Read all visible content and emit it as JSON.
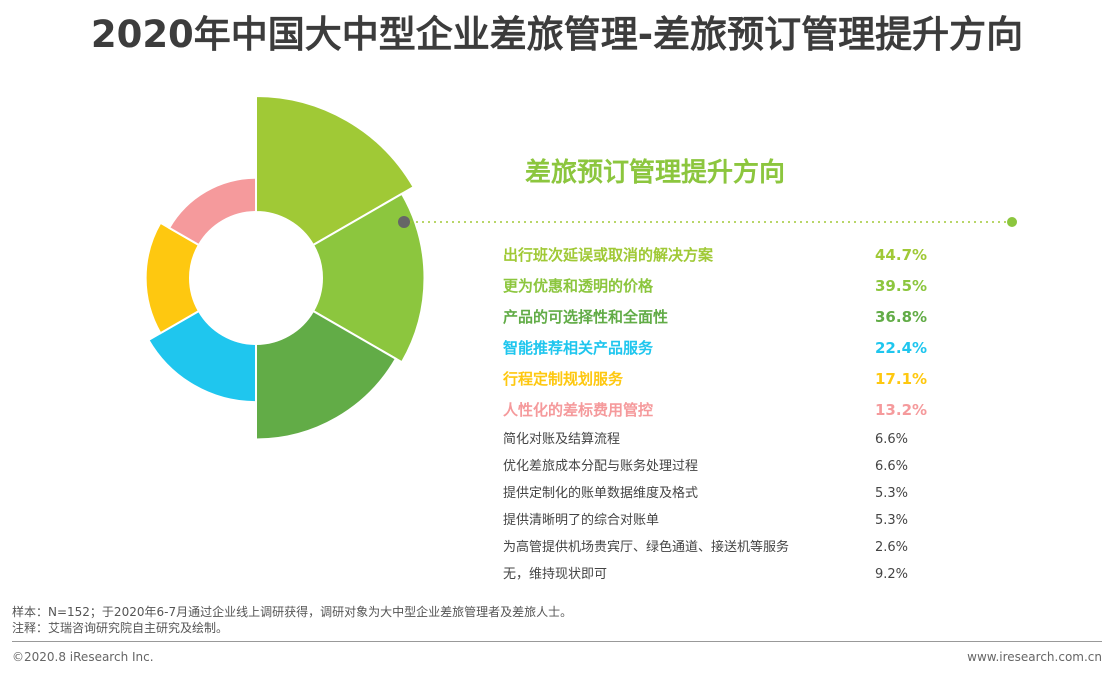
{
  "title": "2020年中国大中型企业差旅管理-差旅预订管理提升方向",
  "chart_data": {
    "type": "pie",
    "title": "差旅预订管理提升方向",
    "unit": "%",
    "categories": [
      "出行班次延误或取消的解决方案",
      "更为优惠和透明的价格",
      "产品的可选择性和全面性",
      "智能推荐相关产品服务",
      "行程定制规划服务",
      "人性化的差标费用管控",
      "简化对账及结算流程",
      "优化差旅成本分配与账务处理过程",
      "提供定制化的账单数据维度及格式",
      "提供清晰明了的综合对账单",
      "为高管提供机场贵宾厅、绿色通道、接送机等服务",
      "无，维持现状即可"
    ],
    "values": [
      44.7,
      39.5,
      36.8,
      22.4,
      17.1,
      13.2,
      6.6,
      6.6,
      5.3,
      5.3,
      2.6,
      9.2
    ],
    "value_labels": [
      "44.7%",
      "39.5%",
      "36.8%",
      "22.4%",
      "17.1%",
      "13.2%",
      "6.6%",
      "6.6%",
      "5.3%",
      "5.3%",
      "2.6%",
      "9.2%"
    ],
    "highlighted_count": 6,
    "colors": [
      "#a0c936",
      "#8cc63e",
      "#62ac47",
      "#1fc6ee",
      "#fec810",
      "#f59a9c",
      "#444444",
      "#444444",
      "#444444",
      "#444444",
      "#444444",
      "#444444"
    ]
  },
  "footnote": {
    "sample": "样本：N=152；于2020年6-7月通过企业线上调研获得，调研对象为大中型企业差旅管理者及差旅人士。",
    "note": "注释：艾瑞咨询研究院自主研究及绘制。"
  },
  "footer": {
    "copyright": "©2020.8 iResearch Inc.",
    "website": "www.iresearch.com.cn"
  }
}
